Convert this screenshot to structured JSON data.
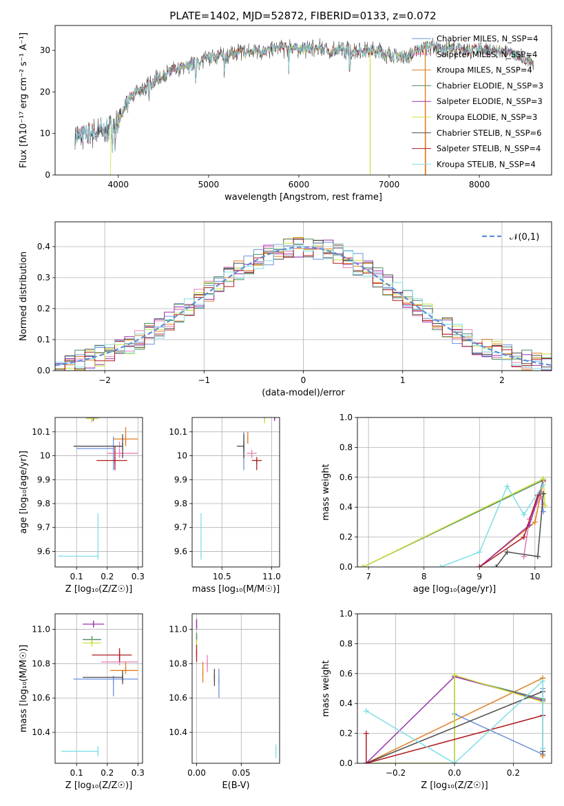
{
  "figure_title": "PLATE=1402, MJD=52872, FIBERID=0133, z=0.072",
  "series_styles": [
    {
      "name": "Chabrier MILES",
      "color": "#6a8fdc",
      "marker": "|"
    },
    {
      "name": "Salpeter MILES",
      "color": "#ea7fba",
      "marker": "|"
    },
    {
      "name": "Kroupa MILES",
      "color": "#e07d1f",
      "marker": "|"
    },
    {
      "name": "Chabrier ELODIE",
      "color": "#4f8a5e",
      "marker": "|"
    },
    {
      "name": "Salpeter ELODIE",
      "color": "#9b2fae",
      "marker": "|"
    },
    {
      "name": "Kroupa ELODIE",
      "color": "#c8e03c",
      "marker": "|"
    },
    {
      "name": "Chabrier STELIB",
      "color": "#4a4a4a",
      "marker": "|"
    },
    {
      "name": "Salpeter STELIB",
      "color": "#b0191d",
      "marker": "|"
    },
    {
      "name": "Kroupa STELIB",
      "color": "#7fdde6",
      "marker": "|"
    }
  ],
  "chart_data": [
    {
      "id": "spectrum",
      "type": "line",
      "title": "PLATE=1402, MJD=52872, FIBERID=0133, z=0.072",
      "xlabel": "wavelength [Angstrom, rest frame]",
      "ylabel": "Flux [fλ10⁻¹⁷ erg cm⁻² s⁻¹ A⁻¹]",
      "xlim": [
        3300,
        8800
      ],
      "ylim": [
        0,
        36
      ],
      "xticks": [
        4000,
        5000,
        6000,
        7000,
        8000
      ],
      "yticks": [
        0,
        10,
        20,
        30
      ],
      "grid": false,
      "legend_placement": "right",
      "legend": [
        "Chabrier MILES, N_SSP=4",
        "Salpeter MILES, N_SSP=4",
        "Kroupa MILES, N_SSP=4",
        "Chabrier ELODIE, N_SSP=3",
        "Salpeter ELODIE, N_SSP=3",
        "Kroupa ELODIE, N_SSP=3",
        "Chabrier STELIB, N_SSP=6",
        "Salpeter STELIB, N_SSP=4",
        "Kroupa STELIB, N_SSP=4"
      ],
      "continuum": {
        "x": [
          3520,
          3700,
          3900,
          4000,
          4100,
          4200,
          4300,
          4400,
          4600,
          4800,
          5000,
          5200,
          5400,
          5600,
          5800,
          6000,
          6200,
          6400,
          6600,
          6800,
          7000,
          7200,
          7400,
          7600,
          7800,
          8000,
          8200,
          8400,
          8600
        ],
        "y": [
          9,
          10,
          11,
          13,
          18,
          20,
          21,
          23,
          25,
          26.5,
          28,
          29,
          29.5,
          30,
          30.5,
          30.5,
          30.5,
          30,
          30,
          30,
          29,
          28.5,
          31,
          30.5,
          30,
          30,
          30,
          29,
          27
        ]
      }
    },
    {
      "id": "residual_histogram",
      "type": "bar",
      "xlabel": "(data-model)/error",
      "ylabel": "Normed distribution",
      "xlim": [
        -2.5,
        2.5
      ],
      "ylim": [
        0,
        0.48
      ],
      "xticks": [
        -2,
        -1,
        0,
        1,
        2
      ],
      "xtick_labels": [
        "−2",
        "−1",
        "0",
        "1",
        "2"
      ],
      "yticks": [
        0,
        0.1,
        0.2,
        0.3,
        0.4
      ],
      "ytick_labels": [
        "0.0",
        "0.1",
        "0.2",
        "0.3",
        "0.4"
      ],
      "grid": true,
      "legend_placement": "top-right",
      "legend": [
        "𝒩(0,1)"
      ],
      "bin_width": 0.1,
      "reference_curve": "gaussian mean 0 sigma 1"
    },
    {
      "id": "age_vs_Z",
      "type": "scatter",
      "xlabel": "Z [log₁₀(Z/Z☉)]",
      "ylabel": "age  [log₁₀(age/yr)]",
      "xlim": [
        0.03,
        0.315
      ],
      "ylim": [
        9.535,
        10.16
      ],
      "xticks": [
        0.1,
        0.2,
        0.3
      ],
      "yticks": [
        9.6,
        9.7,
        9.8,
        9.9,
        10.0,
        10.1
      ],
      "grid": true,
      "points": [
        {
          "series": "Chabrier MILES",
          "x": 0.22,
          "y": 10.03,
          "xerr": [
            0.12,
            0.0
          ],
          "yerr": [
            0.09,
            0.05
          ]
        },
        {
          "series": "Salpeter MILES",
          "x": 0.24,
          "y": 10.01,
          "xerr": [
            0.04,
            0.06
          ],
          "yerr": [
            0.02,
            0.05
          ]
        },
        {
          "series": "Kroupa MILES",
          "x": 0.26,
          "y": 10.07,
          "xerr": [
            0.04,
            0.04
          ],
          "yerr": [
            0.03,
            0.05
          ]
        },
        {
          "series": "Chabrier ELODIE",
          "x": 0.15,
          "y": 10.16,
          "xerr": [
            0.02,
            0.02
          ],
          "yerr": [
            0.02,
            0.0
          ]
        },
        {
          "series": "Salpeter ELODIE",
          "x": 0.155,
          "y": 10.16,
          "xerr": [
            0.02,
            0.02
          ],
          "yerr": [
            0.01,
            0.0
          ]
        },
        {
          "series": "Kroupa ELODIE",
          "x": 0.15,
          "y": 10.155,
          "xerr": [
            0.02,
            0.02
          ],
          "yerr": [
            0.01,
            0.0
          ]
        },
        {
          "series": "Chabrier STELIB",
          "x": 0.25,
          "y": 10.04,
          "xerr": [
            0.16,
            0.0
          ],
          "yerr": [
            0.05,
            0.05
          ]
        },
        {
          "series": "Salpeter STELIB",
          "x": 0.225,
          "y": 9.98,
          "xerr": [
            0.06,
            0.04
          ],
          "yerr": [
            0.04,
            0.06
          ]
        },
        {
          "series": "Kroupa STELIB",
          "x": 0.17,
          "y": 9.58,
          "xerr": [
            0.13,
            0.0
          ],
          "yerr": [
            0.0,
            0.18
          ]
        }
      ]
    },
    {
      "id": "age_vs_mass",
      "type": "scatter",
      "xlabel": "mass [log₁₀(M/M☉)]",
      "ylabel": "",
      "xlim": [
        10.2,
        11.08
      ],
      "ylim": [
        9.535,
        10.16
      ],
      "xticks": [
        10.5,
        11.0
      ],
      "xtick_labels": [
        "10.5",
        "11.0"
      ],
      "yticks": [
        9.6,
        9.7,
        9.8,
        9.9,
        10.0,
        10.1
      ],
      "grid": true,
      "points": [
        {
          "series": "Chabrier MILES",
          "x": 10.72,
          "y": 10.03,
          "xerr": [
            0.0,
            0.0
          ],
          "yerr": [
            0.09,
            0.07
          ]
        },
        {
          "series": "Salpeter MILES",
          "x": 10.8,
          "y": 10.01,
          "xerr": [
            0.05,
            0.05
          ],
          "yerr": [
            0.02,
            0.0
          ]
        },
        {
          "series": "Kroupa MILES",
          "x": 10.76,
          "y": 10.07,
          "xerr": [
            0.0,
            0.0
          ],
          "yerr": [
            0.02,
            0.03
          ]
        },
        {
          "series": "Chabrier ELODIE",
          "x": 10.93,
          "y": 10.16,
          "xerr": [
            0.0,
            0.0
          ],
          "yerr": [
            0.02,
            0.0
          ]
        },
        {
          "series": "Salpeter ELODIE",
          "x": 11.03,
          "y": 10.16,
          "xerr": [
            0.0,
            0.0
          ],
          "yerr": [
            0.01,
            0.0
          ]
        },
        {
          "series": "Kroupa ELODIE",
          "x": 10.93,
          "y": 10.15,
          "xerr": [
            0.0,
            0.0
          ],
          "yerr": [
            0.01,
            0.0
          ]
        },
        {
          "series": "Chabrier STELIB",
          "x": 10.72,
          "y": 10.04,
          "xerr": [
            0.07,
            0.0
          ],
          "yerr": [
            0.05,
            0.05
          ]
        },
        {
          "series": "Salpeter STELIB",
          "x": 10.85,
          "y": 9.98,
          "xerr": [
            0.05,
            0.05
          ],
          "yerr": [
            0.04,
            0.0
          ]
        },
        {
          "series": "Kroupa STELIB",
          "x": 10.29,
          "y": 9.58,
          "xerr": [
            0.0,
            0.0
          ],
          "yerr": [
            0.0,
            0.18
          ]
        }
      ]
    },
    {
      "id": "weight_vs_age",
      "type": "line",
      "xlabel": "age  [log₁₀(age/yr)]",
      "ylabel": "mass weight",
      "xlim": [
        6.8,
        10.3
      ],
      "ylim": [
        0,
        1
      ],
      "xticks": [
        7,
        8,
        9,
        10
      ],
      "yticks": [
        0,
        0.2,
        0.4,
        0.6,
        0.8,
        1.0
      ],
      "ytick_labels": [
        "0.0",
        "0.2",
        "0.4",
        "0.6",
        "0.8",
        "1.0"
      ],
      "grid": true,
      "series": [
        {
          "name": "Chabrier MILES",
          "x": [
            9.8,
            9.9,
            10.1,
            10.15
          ],
          "y": [
            0.07,
            0.32,
            0.5,
            0.37
          ]
        },
        {
          "name": "Salpeter MILES",
          "x": [
            9.8,
            9.9,
            10.1,
            10.15
          ],
          "y": [
            0.07,
            0.32,
            0.47,
            0.42
          ]
        },
        {
          "name": "Kroupa MILES",
          "x": [
            9.0,
            10.0,
            10.15
          ],
          "y": [
            0.0,
            0.3,
            0.57
          ]
        },
        {
          "name": "Chabrier ELODIE",
          "x": [
            6.9,
            10.15
          ],
          "y": [
            0.0,
            0.58
          ]
        },
        {
          "name": "Salpeter ELODIE",
          "x": [
            9.0,
            9.9,
            10.15
          ],
          "y": [
            0.0,
            0.28,
            0.58
          ]
        },
        {
          "name": "Kroupa ELODIE",
          "x": [
            6.9,
            10.15,
            10.18
          ],
          "y": [
            0.0,
            0.59,
            0.41
          ]
        },
        {
          "name": "Chabrier STELIB",
          "x": [
            9.3,
            9.5,
            10.05,
            10.15
          ],
          "y": [
            0.0,
            0.1,
            0.07,
            0.49
          ]
        },
        {
          "name": "Salpeter STELIB",
          "x": [
            9.0,
            9.8,
            10.05
          ],
          "y": [
            0.0,
            0.2,
            0.48
          ]
        },
        {
          "name": "Kroupa STELIB",
          "x": [
            8.3,
            9.0,
            9.5,
            9.8,
            10.15
          ],
          "y": [
            0.0,
            0.1,
            0.54,
            0.35,
            0.55
          ]
        }
      ]
    },
    {
      "id": "mass_vs_Z",
      "type": "scatter",
      "xlabel": "Z [log₁₀(Z/Z☉)]",
      "ylabel": "mass [log₁₀(M/M☉)]",
      "xlim": [
        0.03,
        0.315
      ],
      "ylim": [
        10.22,
        11.09
      ],
      "xticks": [
        0.1,
        0.2,
        0.3
      ],
      "yticks": [
        10.4,
        10.6,
        10.8,
        11.0
      ],
      "ytick_labels": [
        "10.4",
        "10.6",
        "10.8",
        "11.0"
      ],
      "grid": true,
      "points": [
        {
          "series": "Chabrier MILES",
          "x": 0.22,
          "y": 10.71,
          "xerr": [
            0.13,
            0.08
          ],
          "yerr": [
            0.1,
            0.0
          ]
        },
        {
          "series": "Salpeter MILES",
          "x": 0.24,
          "y": 10.81,
          "xerr": [
            0.06,
            0.06
          ],
          "yerr": [
            0.0,
            0.05
          ]
        },
        {
          "series": "Kroupa MILES",
          "x": 0.26,
          "y": 10.76,
          "xerr": [
            0.05,
            0.04
          ],
          "yerr": [
            0.0,
            0.05
          ]
        },
        {
          "series": "Chabrier ELODIE",
          "x": 0.15,
          "y": 10.94,
          "xerr": [
            0.03,
            0.03
          ],
          "yerr": [
            0.02,
            0.02
          ]
        },
        {
          "series": "Salpeter ELODIE",
          "x": 0.155,
          "y": 11.03,
          "xerr": [
            0.035,
            0.035
          ],
          "yerr": [
            0.02,
            0.02
          ]
        },
        {
          "series": "Kroupa ELODIE",
          "x": 0.15,
          "y": 10.92,
          "xerr": [
            0.03,
            0.03
          ],
          "yerr": [
            0.02,
            0.02
          ]
        },
        {
          "series": "Chabrier STELIB",
          "x": 0.25,
          "y": 10.72,
          "xerr": [
            0.13,
            0.0
          ],
          "yerr": [
            0.04,
            0.04
          ]
        },
        {
          "series": "Salpeter STELIB",
          "x": 0.24,
          "y": 10.85,
          "xerr": [
            0.09,
            0.04
          ],
          "yerr": [
            0.04,
            0.04
          ]
        },
        {
          "series": "Kroupa STELIB",
          "x": 0.17,
          "y": 10.29,
          "xerr": [
            0.12,
            0.0
          ],
          "yerr": [
            0.03,
            0.03
          ]
        }
      ]
    },
    {
      "id": "mass_vs_ebv",
      "type": "scatter",
      "xlabel": "E(B-V)",
      "ylabel": "",
      "xlim": [
        -0.005,
        0.093
      ],
      "ylim": [
        10.22,
        11.09
      ],
      "xticks": [
        0.0,
        0.05
      ],
      "xtick_labels": [
        "0.00",
        "0.05"
      ],
      "yticks": [
        10.4,
        10.6,
        10.8,
        11.0
      ],
      "ytick_labels": [
        "10.4",
        "10.6",
        "10.8",
        "11.0"
      ],
      "grid": true,
      "points": [
        {
          "series": "Chabrier MILES",
          "x": 0.025,
          "y": 10.7,
          "yerr": [
            0.1,
            0.07
          ]
        },
        {
          "series": "Salpeter MILES",
          "x": 0.012,
          "y": 10.8,
          "yerr": [
            0.05,
            0.05
          ]
        },
        {
          "series": "Kroupa MILES",
          "x": 0.007,
          "y": 10.75,
          "yerr": [
            0.06,
            0.06
          ]
        },
        {
          "series": "Chabrier ELODIE",
          "x": 0.0,
          "y": 10.95,
          "yerr": [
            0.03,
            0.03
          ]
        },
        {
          "series": "Salpeter ELODIE",
          "x": 0.0,
          "y": 11.03,
          "yerr": [
            0.03,
            0.03
          ]
        },
        {
          "series": "Kroupa ELODIE",
          "x": 0.0,
          "y": 10.92,
          "yerr": [
            0.02,
            0.02
          ]
        },
        {
          "series": "Chabrier STELIB",
          "x": 0.02,
          "y": 10.72,
          "yerr": [
            0.05,
            0.05
          ]
        },
        {
          "series": "Salpeter STELIB",
          "x": 0.0,
          "y": 10.86,
          "yerr": [
            0.05,
            0.05
          ]
        },
        {
          "series": "Kroupa STELIB",
          "x": 0.089,
          "y": 10.29,
          "yerr": [
            0.04,
            0.04
          ]
        }
      ]
    },
    {
      "id": "weight_vs_Z",
      "type": "line",
      "xlabel": "Z [log₁₀(Z/Z☉)]",
      "ylabel": "mass weight",
      "xlim": [
        -0.33,
        0.33
      ],
      "ylim": [
        0,
        1
      ],
      "xticks": [
        -0.2,
        0.0,
        0.2
      ],
      "xtick_labels": [
        "−0.2",
        "0.0",
        "0.2"
      ],
      "yticks": [
        0,
        0.2,
        0.4,
        0.6,
        0.8,
        1.0
      ],
      "ytick_labels": [
        "0.0",
        "0.2",
        "0.4",
        "0.6",
        "0.8",
        "1.0"
      ],
      "grid": true,
      "series": [
        {
          "name": "Chabrier MILES",
          "x": [
            0.0,
            0.3,
            0.3
          ],
          "y": [
            0.33,
            0.06,
            0.5
          ]
        },
        {
          "name": "Salpeter MILES",
          "x": [
            0.3,
            0.3
          ],
          "y": [
            0.08,
            0.32
          ]
        },
        {
          "name": "Kroupa MILES",
          "x": [
            -0.3,
            0.3,
            0.3
          ],
          "y": [
            0.0,
            0.57,
            0.05
          ]
        },
        {
          "name": "Chabrier ELODIE",
          "x": [
            0.0,
            0.0,
            0.3
          ],
          "y": [
            0.0,
            0.58,
            0.43
          ]
        },
        {
          "name": "Salpeter ELODIE",
          "x": [
            -0.3,
            0.0,
            0.3
          ],
          "y": [
            0.0,
            0.58,
            0.42
          ]
        },
        {
          "name": "Kroupa ELODIE",
          "x": [
            -0.3,
            0.0,
            0.0,
            0.3
          ],
          "y": [
            0.0,
            0.0,
            0.59,
            0.41
          ]
        },
        {
          "name": "Chabrier STELIB",
          "x": [
            -0.3,
            0.3,
            0.3
          ],
          "y": [
            0.0,
            0.48,
            0.08
          ]
        },
        {
          "name": "Salpeter STELIB",
          "x": [
            -0.3,
            -0.3,
            0.3
          ],
          "y": [
            0.2,
            0.0,
            0.32
          ]
        },
        {
          "name": "Kroupa STELIB",
          "x": [
            -0.3,
            0.0,
            0.3,
            0.3
          ],
          "y": [
            0.35,
            0.0,
            0.55,
            0.1
          ]
        }
      ]
    }
  ]
}
